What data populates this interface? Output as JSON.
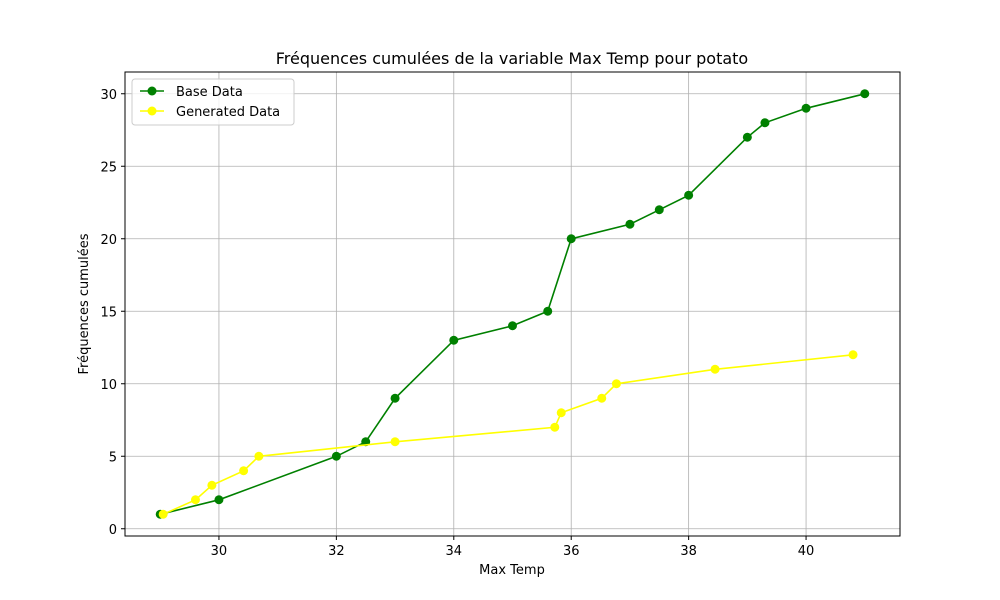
{
  "chart_data": {
    "type": "line",
    "title": "Fréquences cumulées de la variable Max Temp pour potato",
    "xlabel": "Max Temp",
    "ylabel": "Fréquences cumulées",
    "xlim": [
      28.4,
      41.6
    ],
    "ylim": [
      -0.5,
      31.5
    ],
    "xticks": [
      30,
      32,
      34,
      36,
      38,
      40
    ],
    "yticks": [
      0,
      5,
      10,
      15,
      20,
      25,
      30
    ],
    "grid": true,
    "legend_position": "top-left",
    "series": [
      {
        "name": "Base Data",
        "color": "#008000",
        "x": [
          29.0,
          30.0,
          32.0,
          32.5,
          33.0,
          34.0,
          35.0,
          35.6,
          36.0,
          37.0,
          37.5,
          38.0,
          39.0,
          39.3,
          40.0,
          41.0
        ],
        "y": [
          1,
          2,
          5,
          6,
          9,
          13,
          14,
          15,
          20,
          21,
          22,
          23,
          27,
          28,
          29,
          30
        ]
      },
      {
        "name": "Generated Data",
        "color": "#ffff00",
        "x": [
          29.05,
          29.6,
          29.88,
          30.42,
          30.68,
          33.0,
          35.72,
          35.83,
          36.52,
          36.77,
          38.45,
          40.8
        ],
        "y": [
          1,
          2,
          3,
          4,
          5,
          6,
          7,
          8,
          9,
          10,
          11,
          12
        ]
      }
    ]
  }
}
